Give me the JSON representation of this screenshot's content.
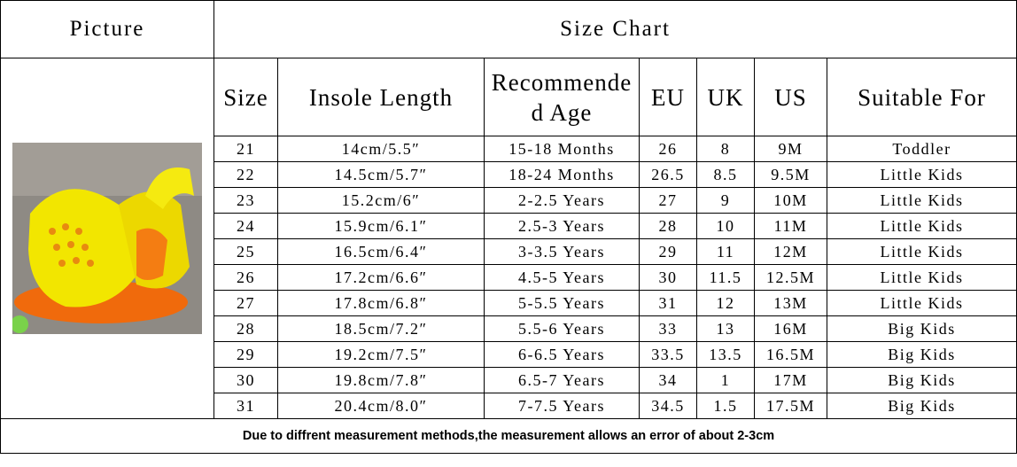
{
  "header": {
    "picture": "Picture",
    "title": "Size Chart"
  },
  "table": {
    "columns": [
      "Size",
      "Insole Length",
      "Recommended Age",
      "EU",
      "UK",
      "US",
      "Suitable For"
    ],
    "rows": [
      [
        "21",
        "14cm/5.5″",
        "15-18 Months",
        "26",
        "8",
        "9M",
        "Toddler"
      ],
      [
        "22",
        "14.5cm/5.7″",
        "18-24 Months",
        "26.5",
        "8.5",
        "9.5M",
        "Little Kids"
      ],
      [
        "23",
        "15.2cm/6″",
        "2-2.5 Years",
        "27",
        "9",
        "10M",
        "Little Kids"
      ],
      [
        "24",
        "15.9cm/6.1″",
        "2.5-3 Years",
        "28",
        "10",
        "11M",
        "Little Kids"
      ],
      [
        "25",
        "16.5cm/6.4″",
        "3-3.5 Years",
        "29",
        "11",
        "12M",
        "Little Kids"
      ],
      [
        "26",
        "17.2cm/6.6″",
        "4.5-5 Years",
        "30",
        "11.5",
        "12.5M",
        "Little Kids"
      ],
      [
        "27",
        "17.8cm/6.8″",
        "5-5.5 Years",
        "31",
        "12",
        "13M",
        "Little Kids"
      ],
      [
        "28",
        "18.5cm/7.2″",
        "5.5-6 Years",
        "33",
        "13",
        "16M",
        "Big Kids"
      ],
      [
        "29",
        "19.2cm/7.5″",
        "6-6.5 Years",
        "33.5",
        "13.5",
        "16.5M",
        "Big Kids"
      ],
      [
        "30",
        "19.8cm/7.8″",
        "6.5-7 Years",
        "34",
        "1",
        "17M",
        "Big Kids"
      ],
      [
        "31",
        "20.4cm/8.0″",
        "7-7.5 Years",
        "34.5",
        "1.5",
        "17.5M",
        "Big Kids"
      ]
    ]
  },
  "footer": "Due to diffrent measurement methods,the measurement allows an error of about 2-3cm"
}
